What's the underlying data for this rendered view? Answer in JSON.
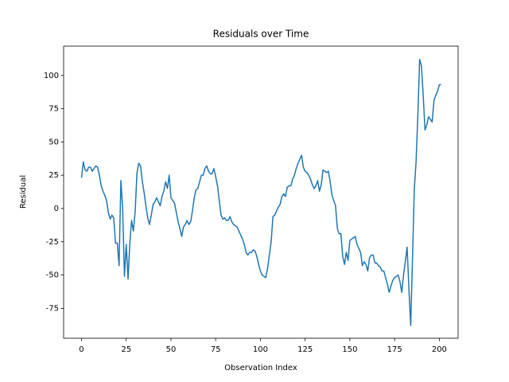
{
  "chart_data": {
    "type": "line",
    "title": "Residuals over Time",
    "x_label": "Observation Index",
    "y_label": "Residual",
    "x": [
      0,
      1,
      2,
      3,
      4,
      5,
      6,
      7,
      8,
      9,
      10,
      11,
      12,
      13,
      14,
      15,
      16,
      17,
      18,
      19,
      20,
      21,
      22,
      23,
      24,
      25,
      26,
      27,
      28,
      29,
      30,
      31,
      32,
      33,
      34,
      35,
      36,
      37,
      38,
      39,
      40,
      41,
      42,
      43,
      44,
      45,
      46,
      47,
      48,
      49,
      50,
      51,
      52,
      53,
      54,
      55,
      56,
      57,
      58,
      59,
      60,
      61,
      62,
      63,
      64,
      65,
      66,
      67,
      68,
      69,
      70,
      71,
      72,
      73,
      74,
      75,
      76,
      77,
      78,
      79,
      80,
      81,
      82,
      83,
      84,
      85,
      86,
      87,
      88,
      89,
      90,
      91,
      92,
      93,
      94,
      95,
      96,
      97,
      98,
      99,
      100,
      101,
      102,
      103,
      104,
      105,
      106,
      107,
      108,
      109,
      110,
      111,
      112,
      113,
      114,
      115,
      116,
      117,
      118,
      119,
      120,
      121,
      122,
      123,
      124,
      125,
      126,
      127,
      128,
      129,
      130,
      131,
      132,
      133,
      134,
      135,
      136,
      137,
      138,
      139,
      140,
      141,
      142,
      143,
      144,
      145,
      146,
      147,
      148,
      149,
      150,
      151,
      152,
      153,
      154,
      155,
      156,
      157,
      158,
      159,
      160,
      161,
      162,
      163,
      164,
      165,
      166,
      167,
      168,
      169,
      170,
      171,
      172,
      173,
      174,
      175,
      176,
      177,
      178,
      179,
      180,
      181,
      182,
      183,
      184,
      185,
      186,
      187,
      188,
      189,
      190,
      191,
      192,
      193,
      194,
      195,
      196,
      197,
      198,
      199,
      200,
      201
    ],
    "series": [
      {
        "color": "#1f77b4",
        "values": [
          23,
          35,
          29,
          28,
          31,
          31,
          28,
          30,
          32,
          31,
          25,
          17,
          13,
          10,
          6,
          -3,
          -8,
          -5,
          -7,
          -26,
          -26,
          -43,
          21,
          0,
          -51,
          -27,
          -53,
          -26,
          -9,
          -17,
          -2,
          27,
          34,
          32,
          20,
          12,
          2,
          -7,
          -12,
          -5,
          3,
          5,
          8,
          5,
          2,
          9,
          13,
          20,
          15,
          25,
          8,
          6,
          4,
          -3,
          -10,
          -15,
          -21,
          -14,
          -12,
          -9,
          -12,
          -10,
          -2,
          8,
          14,
          15,
          20,
          25,
          25,
          30,
          32,
          28,
          26,
          26,
          30,
          24,
          17,
          6,
          -5,
          -8,
          -7,
          -9,
          -9,
          -6,
          -10,
          -12,
          -13,
          -14,
          -17,
          -20,
          -23,
          -27,
          -33,
          -35,
          -33,
          -33,
          -31,
          -32,
          -36,
          -42,
          -47,
          -50,
          -51,
          -52,
          -45,
          -35,
          -25,
          -6,
          -5,
          -2,
          1,
          3,
          9,
          11,
          9,
          16,
          17,
          17,
          22,
          25,
          30,
          34,
          37,
          40,
          31,
          28,
          27,
          25,
          22,
          18,
          15,
          17,
          21,
          13,
          18,
          29,
          28,
          27,
          28,
          20,
          10,
          6,
          2,
          -15,
          -19,
          -19,
          -36,
          -42,
          -33,
          -39,
          -24,
          -23,
          -22,
          -21,
          -27,
          -30,
          -33,
          -43,
          -40,
          -42,
          -47,
          -37,
          -35,
          -35,
          -41,
          -41,
          -43,
          -44,
          -47,
          -47,
          -52,
          -57,
          -63,
          -58,
          -54,
          -52,
          -51,
          -50,
          -55,
          -63,
          -50,
          -40,
          -29,
          -60,
          -88,
          -38,
          14,
          35,
          70,
          112,
          107,
          85,
          59,
          63,
          69,
          67,
          65,
          81,
          85,
          88,
          93,
          93
        ]
      }
    ],
    "xlim": [
      -10,
      210.5
    ],
    "xticks": [
      0,
      25,
      50,
      75,
      100,
      125,
      150,
      175,
      200
    ],
    "ylim": [
      -97.5,
      122
    ],
    "yticks": [
      -75,
      -50,
      -25,
      0,
      25,
      50,
      75,
      100
    ]
  }
}
